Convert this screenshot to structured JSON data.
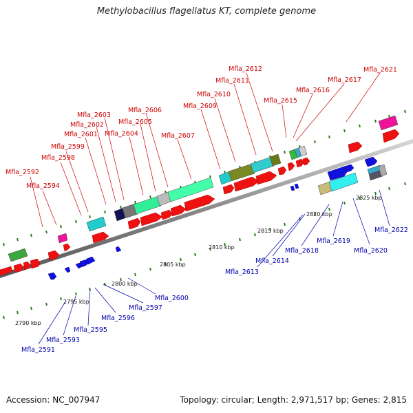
{
  "title": "Methylobacillus flagellatus KT, complete genome",
  "footer": {
    "accession": "Accession: NC_007947",
    "summary": "Topology: circular; Length: 2,971,517 bp; Genes: 2,815"
  },
  "scale_labels": [
    "2790 kbp",
    "2795 kbp",
    "2800 kbp",
    "2805 kbp",
    "2810 kbp",
    "2815 kbp",
    "2820 kbp",
    "2825 kbp"
  ],
  "top_labels": [
    "Mfla_2592",
    "Mfla_2594",
    "Mfla_2598",
    "Mfla_2599",
    "Mfla_2601",
    "Mfla_2602",
    "Mfla_2603",
    "Mfla_2604",
    "Mfla_2605",
    "Mfla_2606",
    "Mfla_2607",
    "Mfla_2609",
    "Mfla_2610",
    "Mfla_2611",
    "Mfla_2612",
    "Mfla_2615",
    "Mfla_2616",
    "Mfla_2617",
    "Mfla_2621"
  ],
  "bottom_labels": [
    "Mfla_2591",
    "Mfla_2593",
    "Mfla_2595",
    "Mfla_2596",
    "Mfla_2597",
    "Mfla_2600",
    "Mfla_2613",
    "Mfla_2614",
    "Mfla_2618",
    "Mfla_2619",
    "Mfla_2620",
    "Mfla_2622"
  ],
  "colors": {
    "forward_gene": "#ee1111",
    "reverse_gene": "#1111dd",
    "backbone": "#8a8a8a",
    "tick": "#2d7d1d",
    "label_top": "#cc0000",
    "label_bottom": "#0000aa"
  }
}
